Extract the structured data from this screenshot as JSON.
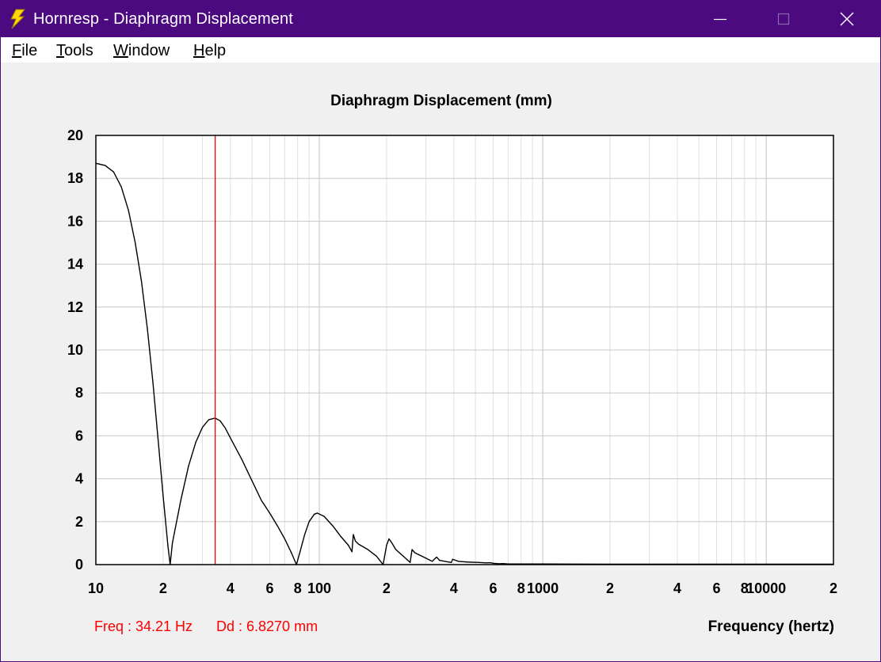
{
  "window": {
    "title": "Hornresp - Diaphragm Displacement",
    "title_bar_color": "#4b0a80",
    "icon": "lightning-bolt-icon",
    "controls": [
      "minimize-icon",
      "maximize-icon",
      "close-icon"
    ]
  },
  "menu": {
    "items": [
      {
        "label": "File",
        "mnemonic": "F",
        "rest": "ile"
      },
      {
        "label": "Tools",
        "mnemonic": "T",
        "rest": "ools"
      },
      {
        "label": "Window",
        "mnemonic": "W",
        "rest": "indow"
      },
      {
        "label": "Help",
        "mnemonic": "H",
        "rest": "elp"
      }
    ]
  },
  "readout": {
    "freq": "Freq : 34.21 Hz",
    "dd": "Dd : 6.8270 mm",
    "color": "#ff0000"
  },
  "chart_data": {
    "type": "line",
    "title": "Diaphragm Displacement (mm)",
    "xlabel": "Frequency (hertz)",
    "ylabel": "",
    "x_scale": "log",
    "xlim": [
      10,
      20000
    ],
    "ylim": [
      0,
      20
    ],
    "grid": true,
    "y_ticks": [
      0,
      2,
      4,
      6,
      8,
      10,
      12,
      14,
      16,
      18,
      20
    ],
    "x_tick_labels": [
      {
        "x": 10,
        "label": "10"
      },
      {
        "x": 20,
        "label": "2"
      },
      {
        "x": 40,
        "label": "4"
      },
      {
        "x": 60,
        "label": "6"
      },
      {
        "x": 80,
        "label": "8"
      },
      {
        "x": 100,
        "label": "100"
      },
      {
        "x": 200,
        "label": "2"
      },
      {
        "x": 400,
        "label": "4"
      },
      {
        "x": 600,
        "label": "6"
      },
      {
        "x": 800,
        "label": "8"
      },
      {
        "x": 1000,
        "label": "1000"
      },
      {
        "x": 2000,
        "label": "2"
      },
      {
        "x": 4000,
        "label": "4"
      },
      {
        "x": 6000,
        "label": "6"
      },
      {
        "x": 8000,
        "label": "8"
      },
      {
        "x": 10000,
        "label": "10000"
      },
      {
        "x": 20000,
        "label": "2"
      }
    ],
    "cursor": {
      "x": 34.21,
      "y": 6.827,
      "color": "#ff0000"
    },
    "series": [
      {
        "color": "#000000",
        "points": [
          [
            10,
            18.7
          ],
          [
            11,
            18.6
          ],
          [
            12,
            18.3
          ],
          [
            13,
            17.6
          ],
          [
            14,
            16.5
          ],
          [
            15,
            15.0
          ],
          [
            16,
            13.2
          ],
          [
            17,
            11.0
          ],
          [
            18,
            8.5
          ],
          [
            19,
            5.8
          ],
          [
            20,
            3.2
          ],
          [
            21,
            0.9
          ],
          [
            21.5,
            0.0
          ],
          [
            22,
            1.0
          ],
          [
            24,
            3.0
          ],
          [
            26,
            4.6
          ],
          [
            28,
            5.7
          ],
          [
            30,
            6.4
          ],
          [
            32,
            6.75
          ],
          [
            34.21,
            6.827
          ],
          [
            36,
            6.7
          ],
          [
            38,
            6.35
          ],
          [
            40,
            5.9
          ],
          [
            45,
            4.9
          ],
          [
            50,
            3.9
          ],
          [
            55,
            3.0
          ],
          [
            60,
            2.4
          ],
          [
            65,
            1.8
          ],
          [
            70,
            1.2
          ],
          [
            75,
            0.55
          ],
          [
            79,
            0.0
          ],
          [
            82,
            0.6
          ],
          [
            86,
            1.4
          ],
          [
            90,
            2.0
          ],
          [
            95,
            2.35
          ],
          [
            98,
            2.4
          ],
          [
            105,
            2.25
          ],
          [
            115,
            1.8
          ],
          [
            125,
            1.3
          ],
          [
            135,
            0.9
          ],
          [
            140,
            0.6
          ],
          [
            142,
            1.4
          ],
          [
            145,
            1.1
          ],
          [
            150,
            0.95
          ],
          [
            165,
            0.7
          ],
          [
            180,
            0.4
          ],
          [
            193,
            0.0
          ],
          [
            200,
            0.9
          ],
          [
            205,
            1.2
          ],
          [
            210,
            1.05
          ],
          [
            220,
            0.7
          ],
          [
            240,
            0.35
          ],
          [
            255,
            0.1
          ],
          [
            260,
            0.7
          ],
          [
            268,
            0.55
          ],
          [
            280,
            0.45
          ],
          [
            300,
            0.3
          ],
          [
            320,
            0.15
          ],
          [
            335,
            0.35
          ],
          [
            345,
            0.2
          ],
          [
            365,
            0.15
          ],
          [
            390,
            0.1
          ],
          [
            395,
            0.25
          ],
          [
            420,
            0.15
          ],
          [
            460,
            0.12
          ],
          [
            520,
            0.1
          ],
          [
            560,
            0.08
          ],
          [
            580,
            0.09
          ],
          [
            600,
            0.06
          ],
          [
            640,
            0.04
          ],
          [
            660,
            0.05
          ],
          [
            700,
            0.03
          ],
          [
            1000,
            0.03
          ],
          [
            2000,
            0.02
          ],
          [
            5000,
            0.02
          ],
          [
            10000,
            0.02
          ],
          [
            20000,
            0.02
          ]
        ]
      }
    ]
  }
}
